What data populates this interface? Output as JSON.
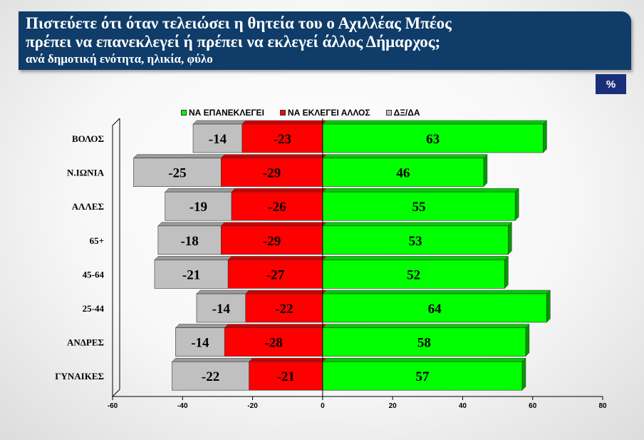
{
  "header": {
    "title_line1": "Πιστεύετε ότι όταν τελειώσει η θητεία του ο Αχιλλέας Μπέος",
    "title_line2": "πρέπει να επανεκλεγεί ή πρέπει να εκλεγεί άλλος Δήμαρχος;",
    "subtitle": "ανά δημοτική ενότητα, ηλικία, φύλο"
  },
  "unit_label": "%",
  "colors": {
    "reelect": "#00ff00",
    "reelect_side": "#00a000",
    "other": "#ff0000",
    "dk": "#c0c0c0",
    "header_bg": "#0f3c69"
  },
  "chart_data": {
    "type": "bar",
    "orientation": "horizontal",
    "stacked": true,
    "categories": [
      "ΒΟΛΟΣ",
      "Ν.ΙΩΝΙΑ",
      "ΑΛΛΕΣ",
      "65+",
      "45-64",
      "25-44",
      "ΑΝΔΡΕΣ",
      "ΓΥΝΑΙΚΕΣ"
    ],
    "series": [
      {
        "name": "ΝΑ ΕΠΑΝΕΚΛΕΓΕΙ",
        "values": [
          63,
          46,
          55,
          53,
          52,
          64,
          58,
          57
        ]
      },
      {
        "name": "ΝΑ ΕΚΛΕΓΕΙ ΑΛΛΟΣ",
        "values": [
          -23,
          -29,
          -26,
          -29,
          -27,
          -22,
          -28,
          -21
        ]
      },
      {
        "name": "ΔΞ/ΔΑ",
        "values": [
          -14,
          -25,
          -19,
          -18,
          -21,
          -14,
          -14,
          -22
        ]
      }
    ],
    "xlim": [
      -60,
      80
    ],
    "xticks": [
      -60,
      -40,
      -20,
      0,
      20,
      40,
      60,
      80
    ],
    "legend_position": "top",
    "grid": false
  }
}
